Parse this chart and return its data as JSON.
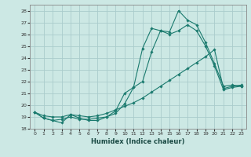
{
  "xlabel": "Humidex (Indice chaleur)",
  "bg_color": "#cce8e4",
  "grid_color": "#aacccc",
  "line_color": "#1a7a6e",
  "xlim": [
    -0.5,
    23.5
  ],
  "ylim": [
    18,
    28.5
  ],
  "xticks": [
    0,
    1,
    2,
    3,
    4,
    5,
    6,
    7,
    8,
    9,
    10,
    11,
    12,
    13,
    14,
    15,
    16,
    17,
    18,
    19,
    20,
    21,
    22,
    23
  ],
  "yticks": [
    18,
    19,
    20,
    21,
    22,
    23,
    24,
    25,
    26,
    27,
    28
  ],
  "series": [
    [
      19.4,
      18.9,
      18.7,
      18.5,
      19.2,
      18.9,
      18.7,
      18.7,
      19.0,
      19.5,
      21.0,
      21.5,
      24.8,
      26.5,
      26.3,
      26.2,
      28.0,
      27.2,
      26.8,
      25.3,
      23.5,
      21.6,
      21.7,
      21.6
    ],
    [
      19.4,
      18.9,
      18.7,
      18.8,
      19.0,
      18.8,
      18.8,
      18.9,
      19.0,
      19.3,
      20.1,
      21.5,
      22.0,
      24.5,
      26.3,
      26.0,
      26.3,
      26.8,
      26.3,
      25.0,
      23.3,
      21.3,
      21.5,
      21.6
    ],
    [
      19.4,
      19.1,
      19.0,
      19.0,
      19.2,
      19.1,
      19.0,
      19.1,
      19.3,
      19.6,
      19.9,
      20.2,
      20.6,
      21.1,
      21.6,
      22.1,
      22.6,
      23.1,
      23.6,
      24.1,
      24.7,
      21.4,
      21.6,
      21.7
    ]
  ]
}
